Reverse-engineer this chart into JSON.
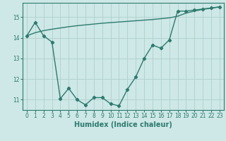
{
  "x": [
    0,
    1,
    2,
    3,
    4,
    5,
    6,
    7,
    8,
    9,
    10,
    11,
    12,
    13,
    14,
    15,
    16,
    17,
    18,
    19,
    20,
    21,
    22,
    23
  ],
  "y_curve": [
    14.1,
    14.75,
    14.1,
    13.8,
    11.05,
    11.55,
    11.0,
    10.75,
    11.1,
    11.1,
    10.8,
    10.7,
    11.5,
    12.1,
    13.0,
    13.65,
    13.5,
    13.9,
    15.3,
    15.3,
    15.35,
    15.4,
    15.45,
    15.5
  ],
  "y_trend": [
    14.1,
    14.25,
    14.35,
    14.42,
    14.48,
    14.54,
    14.59,
    14.63,
    14.67,
    14.71,
    14.74,
    14.77,
    14.8,
    14.83,
    14.86,
    14.89,
    14.93,
    14.97,
    15.05,
    15.2,
    15.3,
    15.38,
    15.44,
    15.5
  ],
  "line_color": "#2d7a6e",
  "bg_color": "#cde8e6",
  "grid_color": "#b0d0ce",
  "xlabel": "Humidex (Indice chaleur)",
  "xlim": [
    -0.5,
    23.5
  ],
  "ylim": [
    10.5,
    15.7
  ],
  "yticks": [
    11,
    12,
    13,
    14,
    15
  ],
  "xticks": [
    0,
    1,
    2,
    3,
    4,
    5,
    6,
    7,
    8,
    9,
    10,
    11,
    12,
    13,
    14,
    15,
    16,
    17,
    18,
    19,
    20,
    21,
    22,
    23
  ],
  "marker": "D",
  "markersize": 2.2,
  "linewidth": 1.0,
  "tick_fontsize": 5.5,
  "xlabel_fontsize": 7.0
}
